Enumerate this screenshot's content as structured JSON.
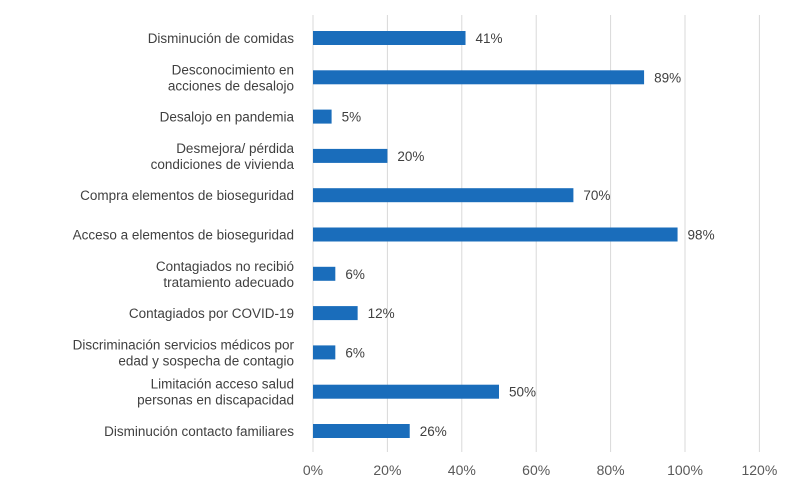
{
  "chart_data": {
    "type": "bar",
    "orientation": "horizontal",
    "title": "",
    "xlabel": "",
    "ylabel": "",
    "xlim": [
      0,
      120
    ],
    "grid": true,
    "bar_color": "#1a6dbb",
    "categories": [
      [
        "Disminución de comidas"
      ],
      [
        "Desconocimiento en",
        "acciones de desalojo"
      ],
      [
        "Desalojo en pandemia"
      ],
      [
        "Desmejora/ pérdida",
        "condiciones de vivienda"
      ],
      [
        "Compra elementos de bioseguridad"
      ],
      [
        "Acceso a elementos de bioseguridad"
      ],
      [
        "Contagiados no recibió",
        "tratamiento adecuado"
      ],
      [
        "Contagiados por COVID-19"
      ],
      [
        "Discriminación servicios médicos por",
        "edad y sospecha de contagio"
      ],
      [
        "Limitación acceso salud",
        "personas en discapacidad"
      ],
      [
        "Disminución contacto familiares"
      ]
    ],
    "values": [
      41,
      89,
      5,
      20,
      70,
      98,
      6,
      12,
      6,
      50,
      26
    ],
    "value_labels": [
      "41%",
      "89%",
      "5%",
      "20%",
      "70%",
      "98%",
      "6%",
      "12%",
      "6%",
      "50%",
      "26%"
    ],
    "x_ticks": [
      0,
      20,
      40,
      60,
      80,
      100,
      120
    ],
    "x_tick_labels": [
      "0%",
      "20%",
      "40%",
      "60%",
      "80%",
      "100%",
      "120%"
    ]
  }
}
